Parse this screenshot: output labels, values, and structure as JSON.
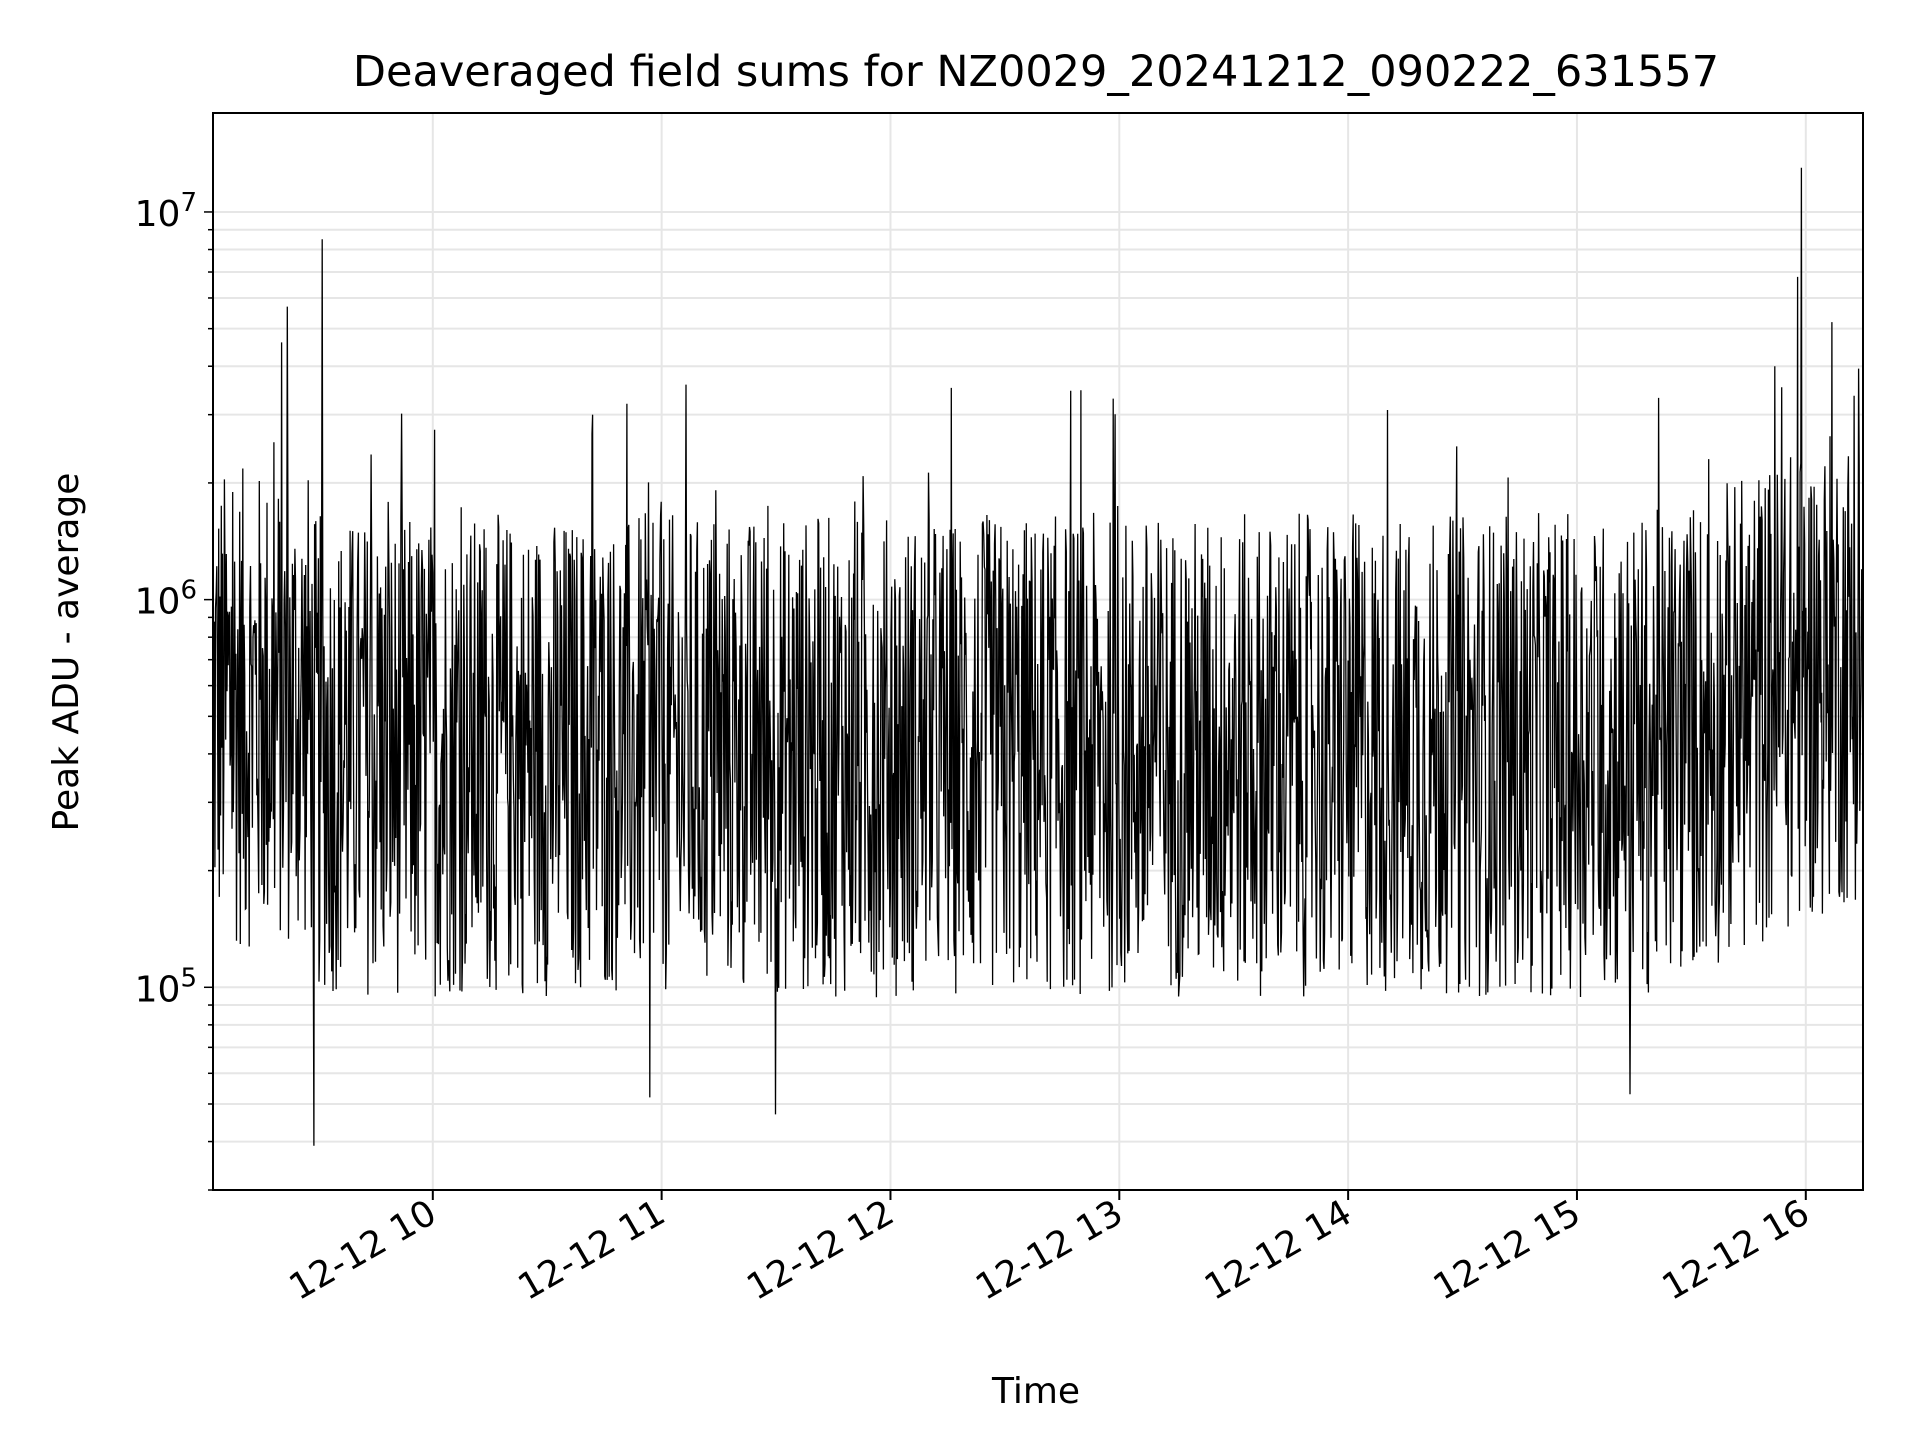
{
  "chart_data": {
    "type": "line",
    "title": "Deaveraged field sums for NZ0029_20241212_090222_631557",
    "xlabel": "Time",
    "ylabel": "Peak ADU - average",
    "y_scale": "log",
    "ylim": [
      30000,
      18000000
    ],
    "xlim": [
      "2024-12-12 09:02:22",
      "2024-12-12 16:15:00"
    ],
    "x_ticks": [
      "12-12 10",
      "12-12 11",
      "12-12 12",
      "12-12 13",
      "12-12 14",
      "12-12 15",
      "12-12 16"
    ],
    "y_tick_base": "10",
    "y_ticks": [
      {
        "exp": "5",
        "value": 100000
      },
      {
        "exp": "6",
        "value": 1000000
      },
      {
        "exp": "7",
        "value": 10000000
      }
    ],
    "grid": true,
    "line_color": "#000000",
    "grid_color": "#e6e6e6",
    "series": [
      {
        "notes": "dense noisy time series, ~1 sample per 10 s; typical value ~5e5 with spikes",
        "x_start": "2024-12-12 09:02:22",
        "x_end": "2024-12-12 16:15:00",
        "points": 2600,
        "baseline": 500000,
        "spikes": [
          {
            "t": "2024-12-12 09:31:00",
            "value": 8500000
          },
          {
            "t": "2024-12-12 09:29:00",
            "value": 39000
          },
          {
            "t": "2024-12-12 09:22:00",
            "value": 5700000
          },
          {
            "t": "2024-12-12 10:42:00",
            "value": 3000000
          },
          {
            "t": "2024-12-12 10:51:00",
            "value": 3200000
          },
          {
            "t": "2024-12-12 11:30:00",
            "value": 47000
          },
          {
            "t": "2024-12-12 10:57:00",
            "value": 52000
          },
          {
            "t": "2024-12-12 15:59:00",
            "value": 13000000
          },
          {
            "t": "2024-12-12 15:58:00",
            "value": 6800000
          },
          {
            "t": "2024-12-12 16:07:00",
            "value": 5200000
          },
          {
            "t": "2024-12-12 15:52:00",
            "value": 4000000
          },
          {
            "t": "2024-12-12 15:14:00",
            "value": 53000
          }
        ]
      }
    ]
  }
}
